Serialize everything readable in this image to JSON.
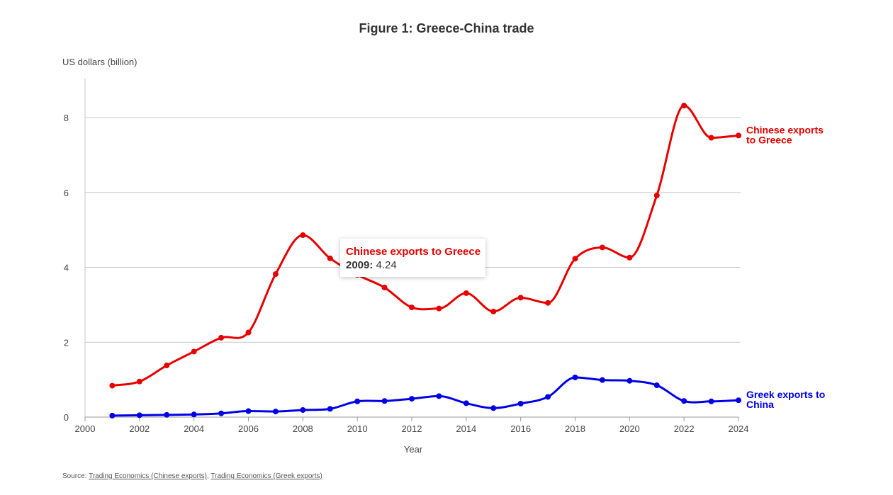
{
  "source": {
    "prefix": "Source:",
    "link_chinese": "Trading Economics (Chinese exports)",
    "separator": ",",
    "link_greek": "Trading Economics (Greek exports)"
  },
  "tooltip": {
    "series": "Chinese exports to Greece",
    "year": "2009:",
    "value": "4.24"
  },
  "chart_data": {
    "type": "line",
    "title": "Figure 1: Greece-China trade",
    "ylabel": "US dollars (billion)",
    "xlabel": "Year",
    "xlim": [
      2000,
      2024
    ],
    "ylim": [
      0,
      9
    ],
    "x_ticks": [
      2000,
      2002,
      2004,
      2006,
      2008,
      2010,
      2012,
      2014,
      2016,
      2018,
      2020,
      2022,
      2024
    ],
    "y_ticks": [
      0,
      2,
      4,
      6,
      8
    ],
    "grid": true,
    "x": [
      2001,
      2002,
      2003,
      2004,
      2005,
      2006,
      2007,
      2008,
      2009,
      2010,
      2011,
      2012,
      2013,
      2014,
      2015,
      2016,
      2017,
      2018,
      2019,
      2020,
      2021,
      2022,
      2023,
      2024
    ],
    "series": [
      {
        "name": "Chinese exports to Greece",
        "label_lines": [
          "Chinese exports",
          "to Greece"
        ],
        "color": "#e60000",
        "values": [
          0.84,
          0.95,
          1.38,
          1.75,
          2.12,
          2.26,
          3.82,
          4.86,
          4.24,
          3.8,
          3.46,
          2.93,
          2.9,
          3.31,
          2.82,
          3.19,
          3.05,
          4.23,
          4.53,
          4.26,
          5.92,
          8.32,
          7.46,
          7.52
        ]
      },
      {
        "name": "Greek exports to China",
        "label_lines": [
          "Greek exports to",
          "China"
        ],
        "color": "#0000e6",
        "values": [
          0.04,
          0.05,
          0.06,
          0.07,
          0.1,
          0.16,
          0.15,
          0.19,
          0.22,
          0.42,
          0.43,
          0.49,
          0.56,
          0.37,
          0.24,
          0.36,
          0.54,
          1.06,
          0.99,
          0.97,
          0.85,
          0.43,
          0.42,
          0.45
        ]
      }
    ]
  }
}
